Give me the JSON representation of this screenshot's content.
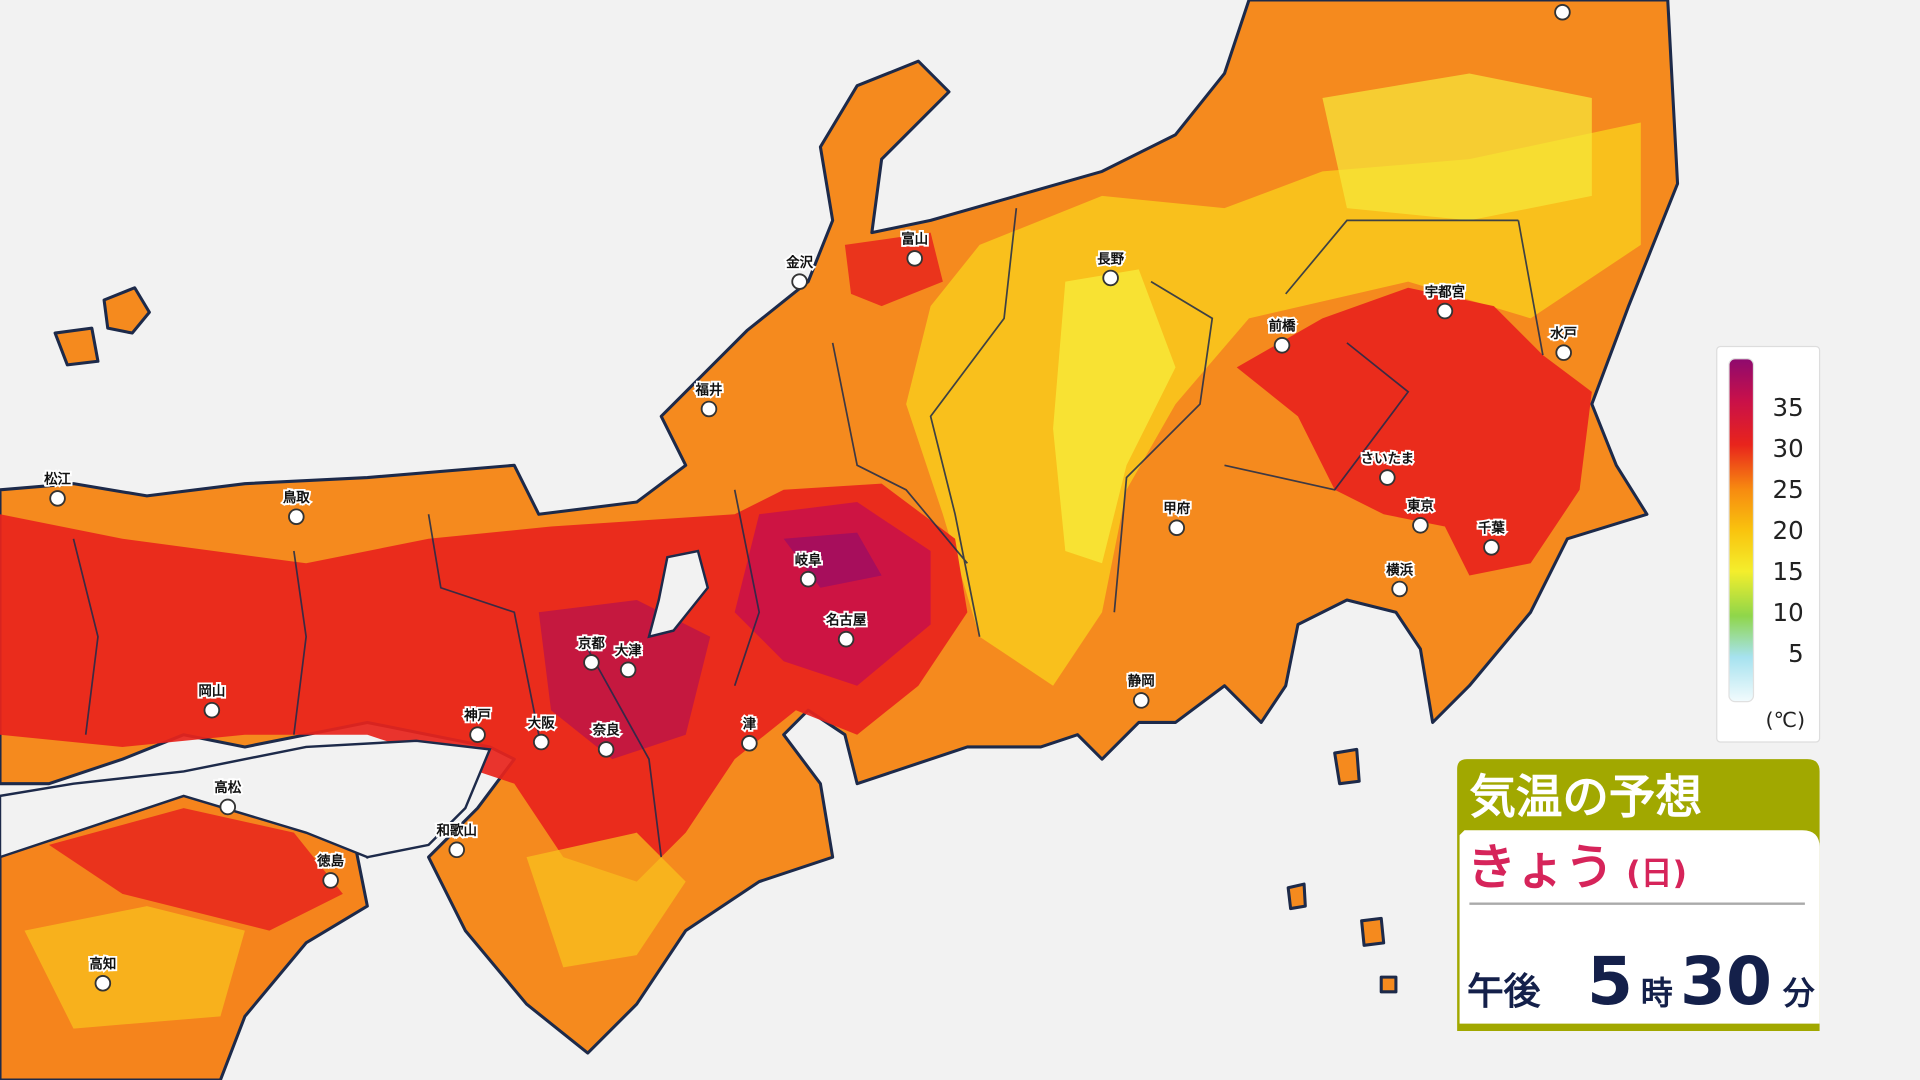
{
  "cities": [
    "松江",
    "鳥取",
    "岡山",
    "高松",
    "徳島",
    "高知",
    "神戸",
    "大阪",
    "和歌山",
    "京都",
    "大津",
    "奈良",
    "津",
    "名古屋",
    "岐阜",
    "福井",
    "金沢",
    "富山",
    "長野",
    "甲府",
    "静岡",
    "前橋",
    "宇都宮",
    "水戸",
    "さいたま",
    "東京",
    "横浜",
    "千葉"
  ],
  "legend": {
    "labels": [
      35,
      30,
      25,
      20,
      15,
      10,
      5
    ],
    "unit": "(℃)"
  },
  "panel": {
    "title": "気温の予想",
    "day": "きょう",
    "weekday": "(日)",
    "period": "午後",
    "hour": "5",
    "hour_unit": "時",
    "minute": "30",
    "minute_unit": "分"
  }
}
